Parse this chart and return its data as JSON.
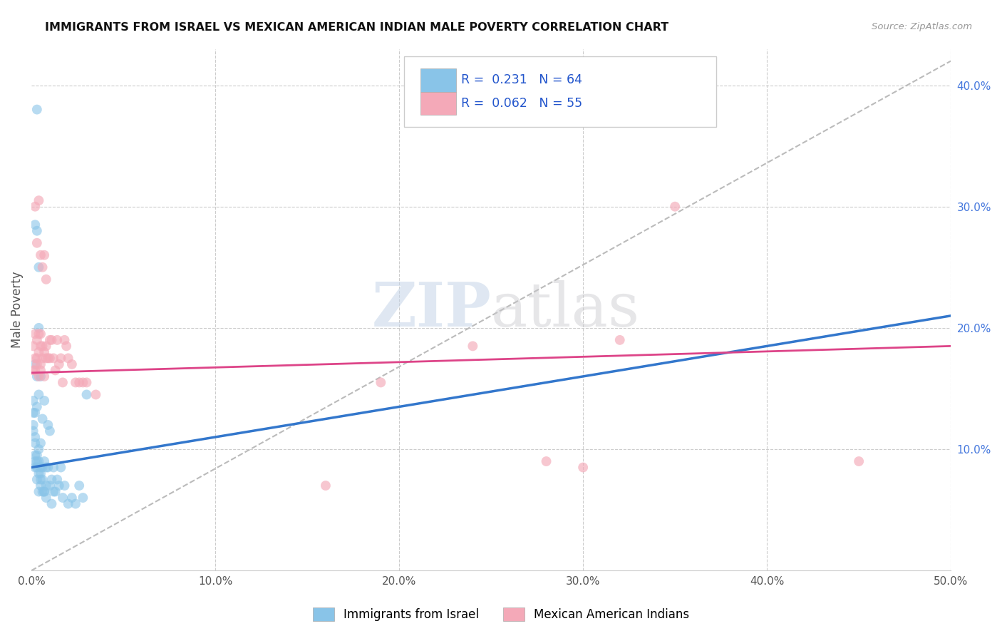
{
  "title": "IMMIGRANTS FROM ISRAEL VS MEXICAN AMERICAN INDIAN MALE POVERTY CORRELATION CHART",
  "source": "Source: ZipAtlas.com",
  "ylabel": "Male Poverty",
  "right_yticks": [
    "10.0%",
    "20.0%",
    "30.0%",
    "40.0%"
  ],
  "right_ytick_vals": [
    0.1,
    0.2,
    0.3,
    0.4
  ],
  "xlim": [
    0.0,
    0.5
  ],
  "ylim": [
    0.0,
    0.43
  ],
  "legend_blue_R": "0.231",
  "legend_blue_N": "64",
  "legend_pink_R": "0.062",
  "legend_pink_N": "55",
  "legend_label_blue": "Immigrants from Israel",
  "legend_label_pink": "Mexican American Indians",
  "watermark": "ZIPatlas",
  "blue_scatter_x": [
    0.001,
    0.001,
    0.001,
    0.001,
    0.002,
    0.002,
    0.002,
    0.002,
    0.002,
    0.002,
    0.003,
    0.003,
    0.003,
    0.003,
    0.003,
    0.003,
    0.004,
    0.004,
    0.004,
    0.004,
    0.004,
    0.005,
    0.005,
    0.005,
    0.005,
    0.005,
    0.005,
    0.006,
    0.006,
    0.006,
    0.006,
    0.007,
    0.007,
    0.007,
    0.007,
    0.008,
    0.008,
    0.008,
    0.009,
    0.009,
    0.01,
    0.01,
    0.011,
    0.011,
    0.012,
    0.012,
    0.013,
    0.014,
    0.015,
    0.016,
    0.017,
    0.018,
    0.02,
    0.022,
    0.024,
    0.026,
    0.028,
    0.002,
    0.002,
    0.003,
    0.003,
    0.004,
    0.004,
    0.03
  ],
  "blue_scatter_y": [
    0.12,
    0.13,
    0.14,
    0.115,
    0.09,
    0.095,
    0.105,
    0.13,
    0.11,
    0.085,
    0.09,
    0.095,
    0.135,
    0.075,
    0.085,
    0.16,
    0.08,
    0.09,
    0.1,
    0.145,
    0.065,
    0.075,
    0.085,
    0.105,
    0.07,
    0.08,
    0.16,
    0.075,
    0.125,
    0.065,
    0.085,
    0.065,
    0.09,
    0.065,
    0.14,
    0.07,
    0.085,
    0.06,
    0.085,
    0.12,
    0.07,
    0.115,
    0.055,
    0.075,
    0.065,
    0.085,
    0.065,
    0.075,
    0.07,
    0.085,
    0.06,
    0.07,
    0.055,
    0.06,
    0.055,
    0.07,
    0.06,
    0.285,
    0.17,
    0.38,
    0.28,
    0.2,
    0.25,
    0.145
  ],
  "pink_scatter_x": [
    0.001,
    0.001,
    0.002,
    0.002,
    0.002,
    0.003,
    0.003,
    0.003,
    0.004,
    0.004,
    0.004,
    0.005,
    0.005,
    0.005,
    0.005,
    0.006,
    0.006,
    0.007,
    0.007,
    0.008,
    0.008,
    0.009,
    0.01,
    0.01,
    0.011,
    0.012,
    0.013,
    0.014,
    0.015,
    0.016,
    0.017,
    0.018,
    0.019,
    0.02,
    0.022,
    0.024,
    0.026,
    0.028,
    0.03,
    0.035,
    0.002,
    0.003,
    0.004,
    0.005,
    0.006,
    0.007,
    0.008,
    0.32,
    0.35,
    0.19,
    0.16,
    0.24,
    0.28,
    0.3,
    0.45
  ],
  "pink_scatter_y": [
    0.165,
    0.185,
    0.175,
    0.195,
    0.165,
    0.17,
    0.175,
    0.19,
    0.16,
    0.18,
    0.195,
    0.165,
    0.17,
    0.185,
    0.195,
    0.185,
    0.175,
    0.16,
    0.18,
    0.175,
    0.185,
    0.175,
    0.19,
    0.175,
    0.19,
    0.175,
    0.165,
    0.19,
    0.17,
    0.175,
    0.155,
    0.19,
    0.185,
    0.175,
    0.17,
    0.155,
    0.155,
    0.155,
    0.155,
    0.145,
    0.3,
    0.27,
    0.305,
    0.26,
    0.25,
    0.26,
    0.24,
    0.19,
    0.3,
    0.155,
    0.07,
    0.185,
    0.09,
    0.085,
    0.09
  ],
  "blue_line_x": [
    0.0,
    0.5
  ],
  "blue_line_y": [
    0.085,
    0.21
  ],
  "pink_line_x": [
    0.0,
    0.5
  ],
  "pink_line_y": [
    0.163,
    0.185
  ],
  "dashed_line_x": [
    0.0,
    0.5
  ],
  "dashed_line_y": [
    0.0,
    0.42
  ],
  "background_color": "#ffffff",
  "blue_color": "#89c4e8",
  "pink_color": "#f4a9b8",
  "blue_line_color": "#3377cc",
  "pink_line_color": "#dd4488",
  "grid_color": "#cccccc",
  "grid_linestyle": "--",
  "xtick_vals": [
    0.0,
    0.1,
    0.2,
    0.3,
    0.4,
    0.5
  ],
  "xtick_labels": [
    "0.0%",
    "10.0%",
    "20.0%",
    "30.0%",
    "40.0%",
    "50.0%"
  ]
}
